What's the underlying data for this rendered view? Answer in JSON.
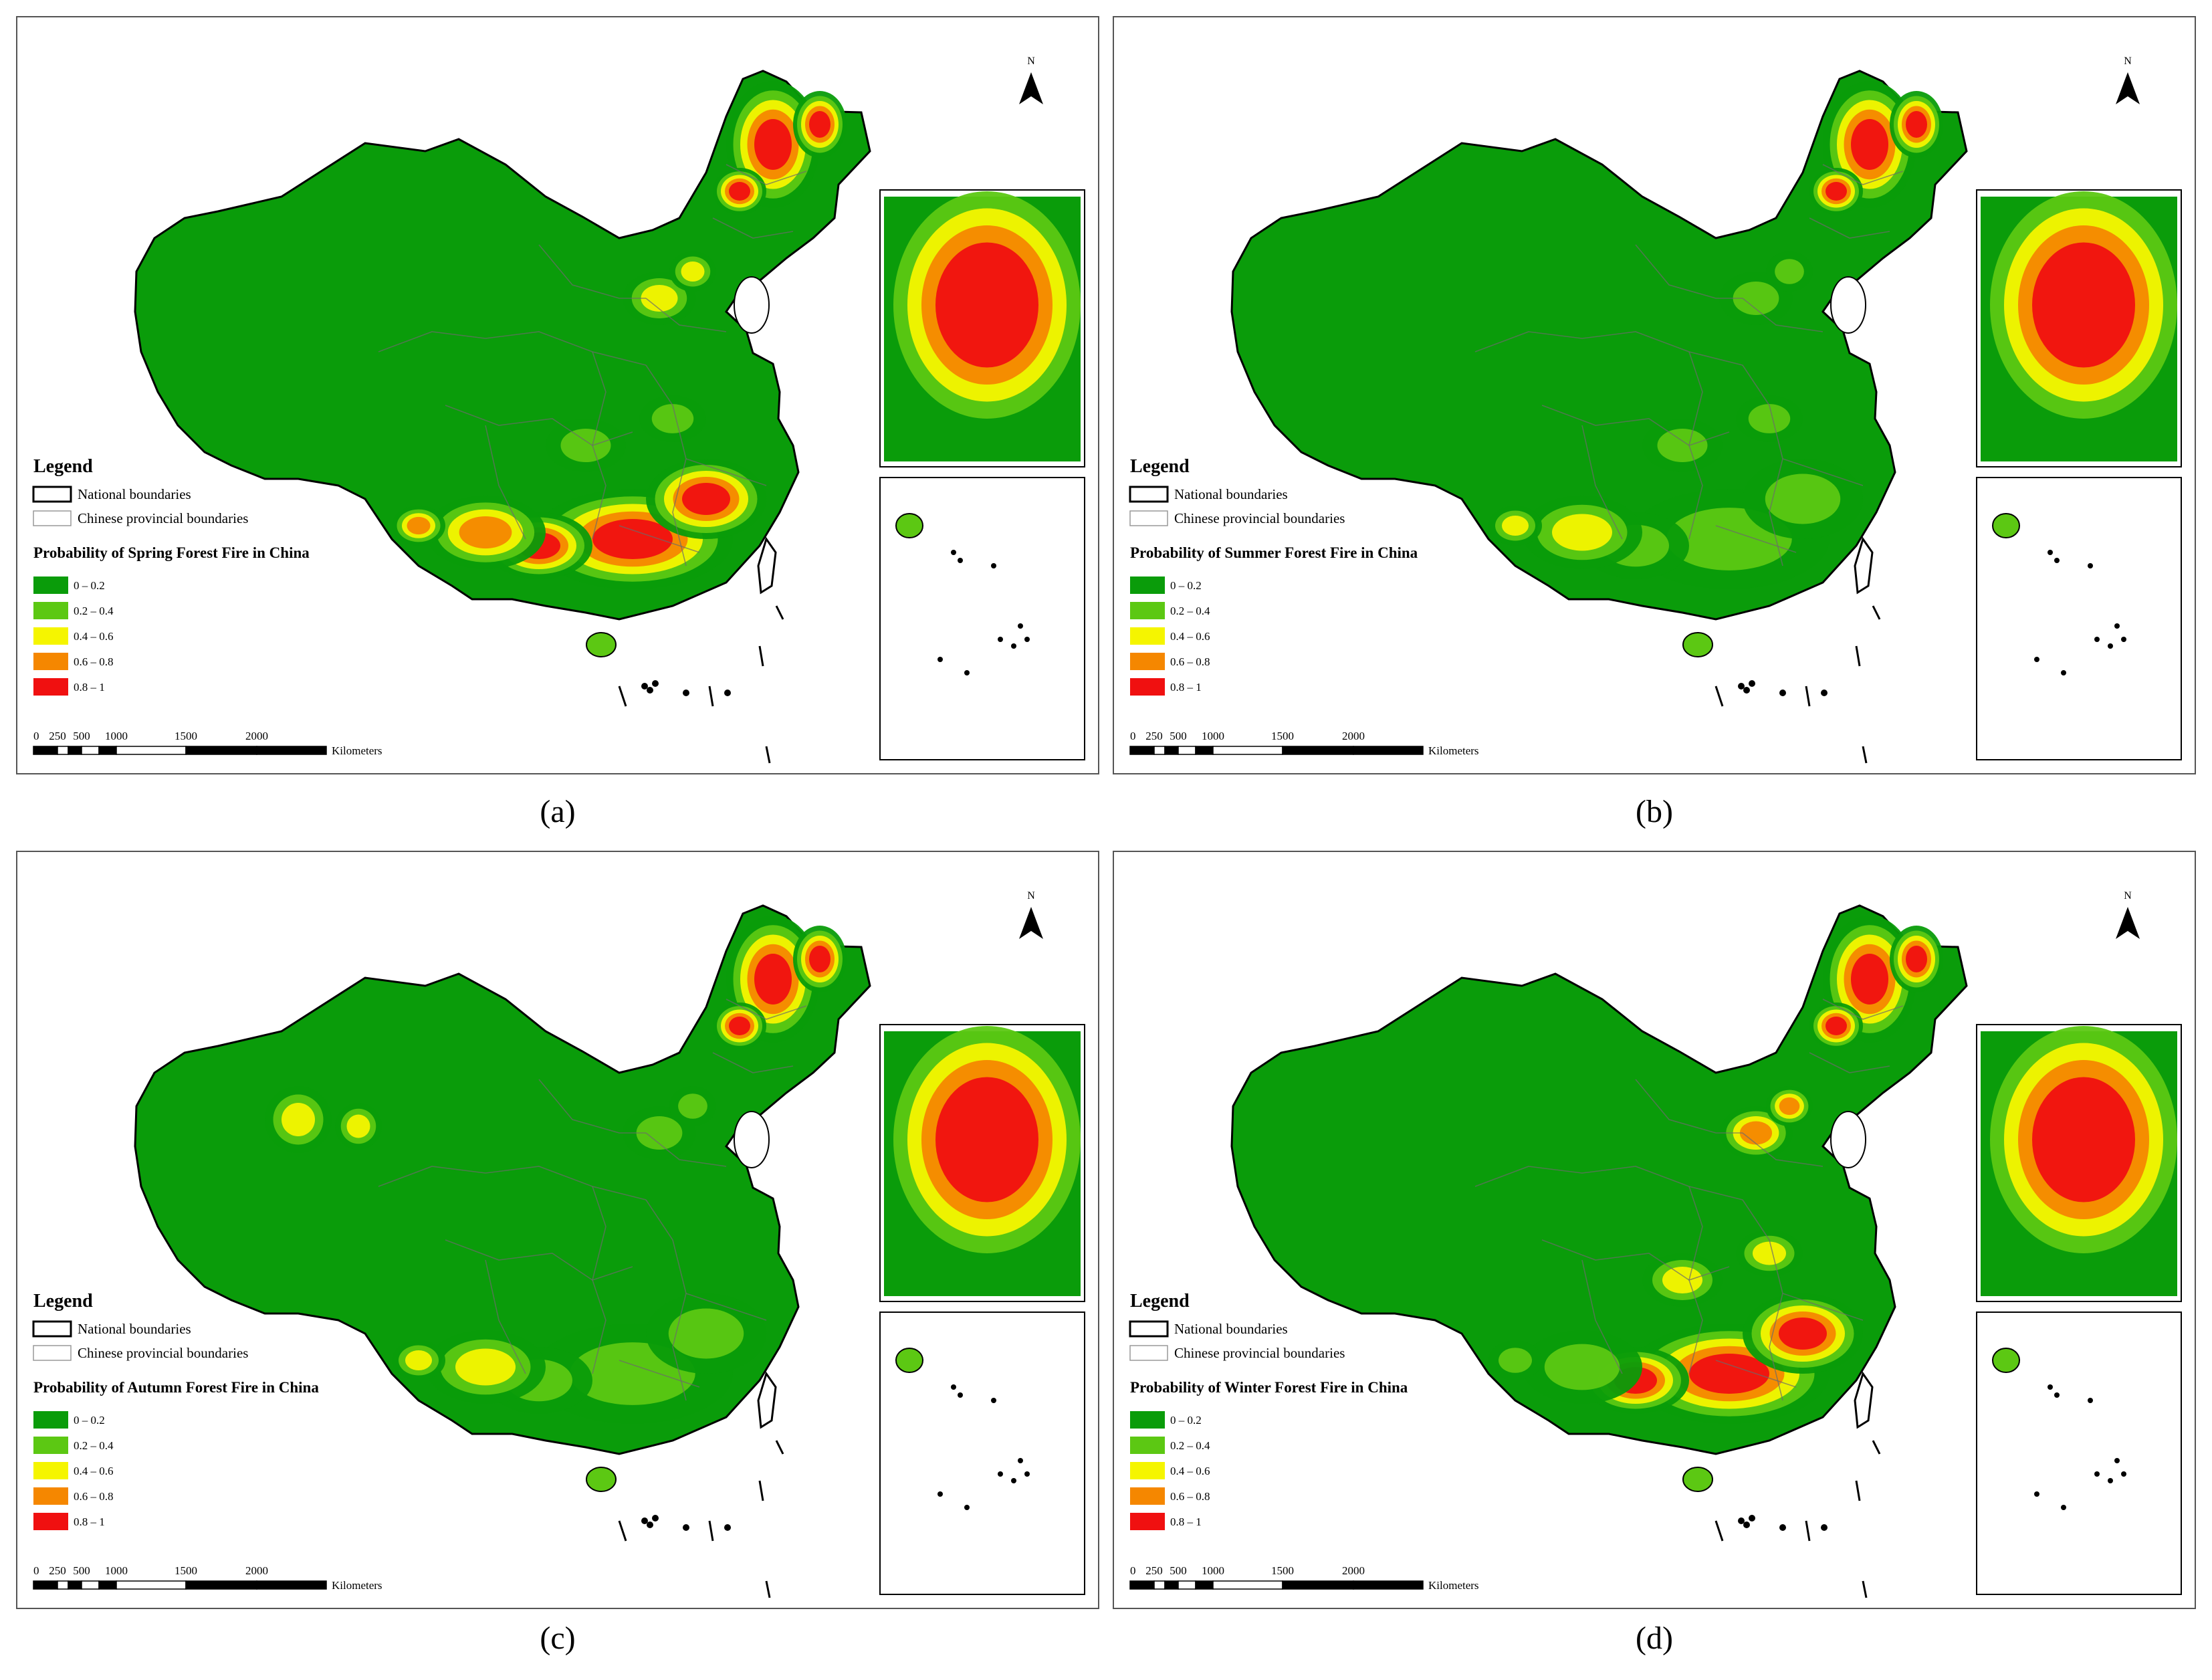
{
  "panels": [
    {
      "id": "a",
      "caption": "(a)",
      "season": "spring",
      "legend_subtitle": "Probability of Spring Forest Fire in China",
      "hotspots": [
        {
          "region": "northeast",
          "level": 4
        },
        {
          "region": "south",
          "level": 4
        },
        {
          "region": "southwest",
          "level": 3
        },
        {
          "region": "north-china",
          "level": 2
        },
        {
          "region": "central",
          "level": 1
        }
      ]
    },
    {
      "id": "b",
      "caption": "(b)",
      "season": "summer",
      "legend_subtitle": "Probability of Summer Forest Fire in China",
      "hotspots": [
        {
          "region": "northeast",
          "level": 4
        },
        {
          "region": "south",
          "level": 1
        },
        {
          "region": "southwest",
          "level": 2
        },
        {
          "region": "north-china",
          "level": 1
        },
        {
          "region": "central",
          "level": 1
        }
      ]
    },
    {
      "id": "c",
      "caption": "(c)",
      "season": "autumn",
      "legend_subtitle": "Probability of Autumn Forest Fire in China",
      "hotspots": [
        {
          "region": "northeast",
          "level": 4
        },
        {
          "region": "south",
          "level": 1
        },
        {
          "region": "southwest",
          "level": 2
        },
        {
          "region": "north-china",
          "level": 1
        },
        {
          "region": "northwest",
          "level": 2
        }
      ]
    },
    {
      "id": "d",
      "caption": "(d)",
      "season": "winter",
      "legend_subtitle": "Probability of Winter Forest Fire in China",
      "hotspots": [
        {
          "region": "northeast",
          "level": 4
        },
        {
          "region": "south",
          "level": 4
        },
        {
          "region": "southwest",
          "level": 1
        },
        {
          "region": "north-china",
          "level": 3
        },
        {
          "region": "central",
          "level": 2
        }
      ]
    }
  ],
  "legend": {
    "title": "Legend",
    "national": "National  boundaries",
    "provincial": "Chinese provincial boundaries",
    "classes": [
      {
        "label": "0 – 0.2",
        "color": "#0a9c0a"
      },
      {
        "label": "0.2 – 0.4",
        "color": "#5cc813"
      },
      {
        "label": "0.4 – 0.6",
        "color": "#f5f500"
      },
      {
        "label": "0.6 – 0.8",
        "color": "#f58700"
      },
      {
        "label": "0.8 – 1",
        "color": "#f01010"
      }
    ]
  },
  "scale": {
    "ticks": [
      "0",
      "250",
      "500",
      "1000",
      "1500",
      "2000"
    ],
    "unit": "Kilometers"
  },
  "north_label": "N"
}
